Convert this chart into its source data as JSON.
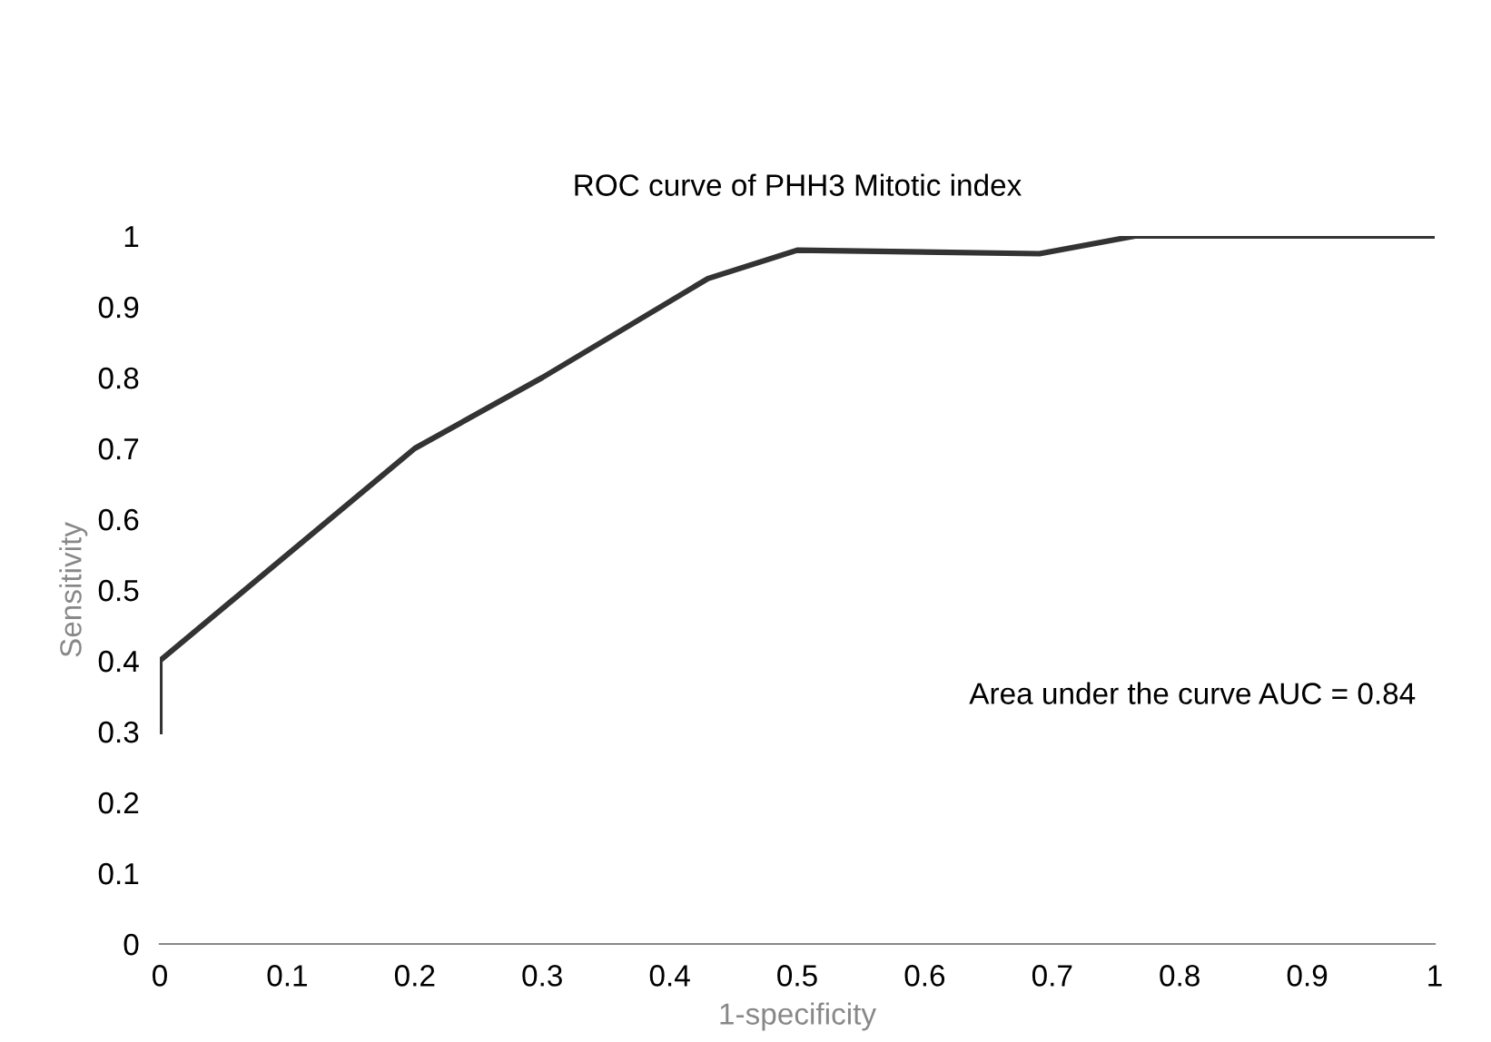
{
  "chart_data": {
    "type": "line",
    "title": "ROC curve of PHH3 Mitotic index",
    "xlabel": "1-specificity",
    "ylabel": "Sensitivity",
    "x": [
      0,
      0,
      0.2,
      0.3,
      0.43,
      0.5,
      0.69,
      0.765,
      1
    ],
    "series": [
      {
        "color": "#333333",
        "values": [
          0.3,
          0.4,
          0.7,
          0.8,
          0.94,
          0.98,
          0.975,
          1,
          1
        ]
      }
    ],
    "xlim": [
      0,
      1
    ],
    "ylim": [
      0,
      1
    ],
    "xticks": [
      0,
      0.1,
      0.2,
      0.3,
      0.4,
      0.5,
      0.6,
      0.7,
      0.8,
      0.9,
      1
    ],
    "yticks": [
      0,
      0.1,
      0.2,
      0.3,
      0.4,
      0.5,
      0.6,
      0.7,
      0.8,
      0.9,
      1
    ],
    "grid": false,
    "legend": false,
    "marker": "none",
    "line_style": "solid",
    "annotations": [
      "Area under the curve AUC = 0.84"
    ]
  }
}
